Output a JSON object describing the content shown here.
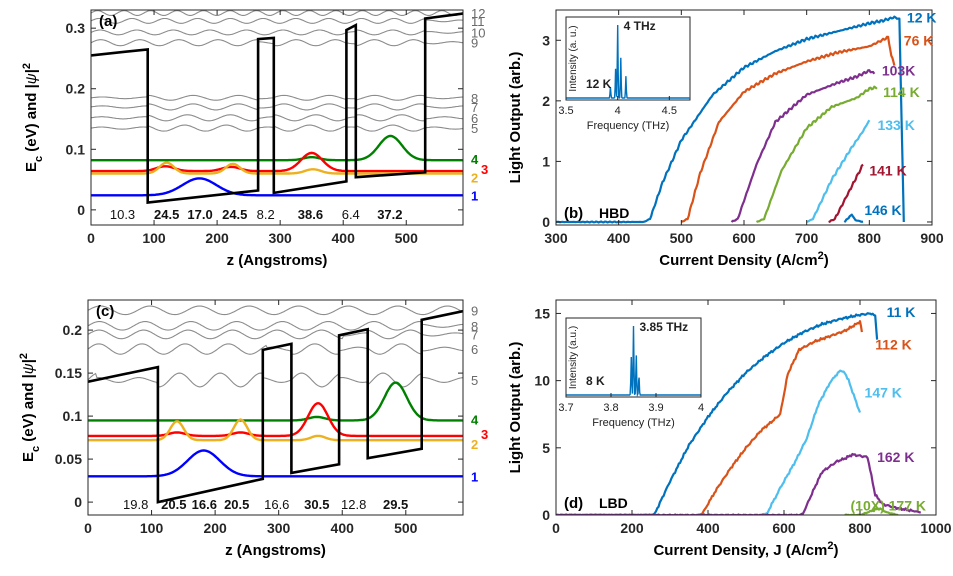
{
  "panels": [
    {
      "id": "a",
      "type": "line",
      "panel_label": "(a)",
      "xlabel": "z (Angstroms)",
      "ylabel": "E",
      "ylabel_sub": "c",
      "ylabel_rest": " (eV) and |",
      "ylabel_psi": "ψ",
      "ylabel_end": "|",
      "ylabel_sup": "2",
      "xlim": [
        0,
        590
      ],
      "ylim": [
        -0.025,
        0.33
      ],
      "xticks": [
        0,
        100,
        200,
        300,
        400,
        500
      ],
      "yticks": [
        0,
        0.1,
        0.2,
        0.3
      ],
      "ytick_labels": [
        "0",
        "0.1",
        "0.2",
        "0.3"
      ],
      "band_edge": {
        "x": [
          0,
          90,
          90,
          265,
          265,
          290,
          290,
          405,
          405,
          420,
          420,
          530,
          530,
          590
        ],
        "y": [
          0.255,
          0.265,
          0.012,
          0.032,
          0.282,
          0.284,
          0.028,
          0.047,
          0.297,
          0.305,
          0.054,
          0.062,
          0.316,
          0.324
        ]
      },
      "layer_thicknesses": [
        {
          "label": "10.3",
          "x": 50,
          "bold": false
        },
        {
          "label": "24.5",
          "x": 120,
          "bold": true
        },
        {
          "label": "17.0",
          "x": 173,
          "bold": true
        },
        {
          "label": "24.5",
          "x": 228,
          "bold": true
        },
        {
          "label": "8.2",
          "x": 277,
          "bold": false
        },
        {
          "label": "38.6",
          "x": 348,
          "bold": true
        },
        {
          "label": "6.4",
          "x": 412,
          "bold": false
        },
        {
          "label": "37.2",
          "x": 474,
          "bold": true
        }
      ],
      "grey_levels": [
        {
          "label": "12",
          "energy": 0.325,
          "amp": 0.004,
          "period": 42
        },
        {
          "label": "11",
          "energy": 0.312,
          "amp": 0.004,
          "period": 52
        },
        {
          "label": "10",
          "energy": 0.293,
          "amp": 0.004,
          "period": 58
        },
        {
          "label": "9",
          "energy": 0.276,
          "amp": 0.005,
          "period": 62
        },
        {
          "label": "8",
          "energy": 0.185,
          "amp": 0.004,
          "period": 72
        },
        {
          "label": "7",
          "energy": 0.17,
          "amp": 0.005,
          "period": 72
        },
        {
          "label": "6",
          "energy": 0.152,
          "amp": 0.005,
          "period": 68
        },
        {
          "label": "5",
          "energy": 0.135,
          "amp": 0.005,
          "period": 66
        }
      ],
      "color_levels": [
        {
          "label": "4",
          "color": "#008000",
          "energy": 0.082,
          "lobes": [
            [
              350,
              18,
              0.005
            ],
            [
              475,
              26,
              0.04
            ]
          ]
        },
        {
          "label": "3",
          "color": "#ff0000",
          "energy": 0.064,
          "lobes": [
            [
              118,
              20,
              0.008
            ],
            [
              222,
              20,
              0.007
            ],
            [
              350,
              24,
              0.03
            ]
          ]
        },
        {
          "label": "2",
          "color": "#edb120",
          "energy": 0.06,
          "lobes": [
            [
              120,
              16,
              0.018
            ],
            [
              225,
              16,
              0.016
            ],
            [
              352,
              18,
              0.007
            ]
          ]
        },
        {
          "label": "1",
          "color": "#0000ff",
          "energy": 0.024,
          "lobes": [
            [
              172,
              38,
              0.028
            ]
          ]
        }
      ]
    },
    {
      "id": "b",
      "type": "line",
      "panel_label": "(b)",
      "panel_sublabel": "HBD",
      "xlabel": "Current Density (A/cm",
      "xlabel_sup": "2",
      "xlabel_end": ")",
      "ylabel": "Light Output (arb.)",
      "xlim": [
        300,
        900
      ],
      "ylim": [
        -0.05,
        3.5
      ],
      "xticks": [
        300,
        400,
        500,
        600,
        700,
        800,
        900
      ],
      "yticks": [
        0,
        1,
        2,
        3
      ],
      "series": [
        {
          "name": "12 K",
          "color": "#0072bd",
          "x": [
            300,
            440,
            450,
            470,
            500,
            550,
            600,
            650,
            700,
            750,
            800,
            820,
            840,
            848,
            855
          ],
          "y": [
            0,
            0,
            0.05,
            0.65,
            1.35,
            2.1,
            2.55,
            2.82,
            3.02,
            3.15,
            3.28,
            3.32,
            3.38,
            3.35,
            0
          ]
        },
        {
          "name": "76 K",
          "color": "#d95319",
          "x": [
            500,
            510,
            530,
            560,
            600,
            650,
            700,
            750,
            800,
            830,
            835,
            840
          ],
          "y": [
            0,
            0.05,
            0.8,
            1.65,
            2.15,
            2.45,
            2.65,
            2.8,
            2.9,
            3.05,
            2.75,
            2.6
          ]
        },
        {
          "name": "103K",
          "color": "#7e2f8e",
          "x": [
            580,
            590,
            620,
            650,
            700,
            750,
            780,
            800,
            808
          ],
          "y": [
            0,
            0.05,
            0.95,
            1.65,
            2.1,
            2.3,
            2.4,
            2.5,
            2.45
          ]
        },
        {
          "name": "114 K",
          "color": "#77ac30",
          "x": [
            620,
            632,
            660,
            700,
            740,
            780,
            800,
            812
          ],
          "y": [
            0,
            0.05,
            0.85,
            1.55,
            1.9,
            2.05,
            2.2,
            2.22
          ]
        },
        {
          "name": "133 K",
          "color": "#4dbeee",
          "x": [
            700,
            710,
            740,
            770,
            790,
            800
          ],
          "y": [
            0,
            0.05,
            0.7,
            1.2,
            1.5,
            1.68
          ]
        },
        {
          "name": "141 K",
          "color": "#a2142f",
          "x": [
            735,
            745,
            765,
            780,
            790
          ],
          "y": [
            0,
            0.05,
            0.45,
            0.75,
            0.95
          ]
        },
        {
          "name": "146 K",
          "color": "#0072bd",
          "x": [
            760,
            765,
            772,
            778,
            790
          ],
          "y": [
            0,
            0.05,
            0.12,
            0.03,
            0
          ]
        }
      ],
      "temp_labels": [
        {
          "text": "12 K",
          "color": "#0072bd",
          "x": 860,
          "y": 3.38
        },
        {
          "text": "76 K",
          "color": "#d95319",
          "x": 855,
          "y": 3.0
        },
        {
          "text": "103K",
          "color": "#7e2f8e",
          "x": 820,
          "y": 2.5
        },
        {
          "text": "114 K",
          "color": "#77ac30",
          "x": 822,
          "y": 2.15
        },
        {
          "text": "133 K",
          "color": "#4dbeee",
          "x": 813,
          "y": 1.6
        },
        {
          "text": "141 K",
          "color": "#a2142f",
          "x": 800,
          "y": 0.85
        },
        {
          "text": "146 K",
          "color": "#0072bd",
          "x": 792,
          "y": 0.2
        }
      ],
      "inset": {
        "xlabel": "Frequency (THz)",
        "ylabel": "Intensity (a. u.)",
        "xlim": [
          3.5,
          4.7
        ],
        "xticks": [
          3.5,
          4,
          4.5
        ],
        "xtick_labels": [
          "3.5",
          "4",
          "4.5"
        ],
        "peak_label": "4 THz",
        "temp_label": "12 K",
        "color": "#0072bd",
        "peaks": [
          [
            3.93,
            0.15
          ],
          [
            3.98,
            0.4
          ],
          [
            4.0,
            1.0
          ],
          [
            4.03,
            0.55
          ],
          [
            4.08,
            0.3
          ]
        ]
      }
    },
    {
      "id": "c",
      "type": "line",
      "panel_label": "(c)",
      "xlabel": "z (Angstroms)",
      "ylabel": "E",
      "ylabel_sub": "c",
      "ylabel_rest": " (eV) and |",
      "ylabel_psi": "ψ",
      "ylabel_end": "|",
      "ylabel_sup": "2",
      "xlim": [
        0,
        590
      ],
      "ylim": [
        -0.015,
        0.235
      ],
      "xticks": [
        0,
        100,
        200,
        300,
        400,
        500
      ],
      "yticks": [
        0,
        0.05,
        0.1,
        0.15,
        0.2
      ],
      "ytick_labels": [
        "0",
        "0.05",
        "0.1",
        "0.15",
        "0.2"
      ],
      "band_edge": {
        "x": [
          0,
          110,
          110,
          275,
          275,
          320,
          320,
          395,
          395,
          440,
          440,
          525,
          525,
          590
        ],
        "y": [
          0.14,
          0.157,
          0.0,
          0.027,
          0.177,
          0.184,
          0.034,
          0.044,
          0.194,
          0.201,
          0.051,
          0.062,
          0.212,
          0.222
        ]
      },
      "layer_thicknesses": [
        {
          "label": "19.8",
          "x": 75,
          "bold": false
        },
        {
          "label": "20.5",
          "x": 135,
          "bold": true
        },
        {
          "label": "16.6",
          "x": 183,
          "bold": true
        },
        {
          "label": "20.5",
          "x": 234,
          "bold": true
        },
        {
          "label": "16.6",
          "x": 297,
          "bold": false
        },
        {
          "label": "30.5",
          "x": 360,
          "bold": true
        },
        {
          "label": "12.8",
          "x": 418,
          "bold": false
        },
        {
          "label": "29.5",
          "x": 484,
          "bold": true
        }
      ],
      "grey_levels": [
        {
          "label": "9",
          "energy": 0.223,
          "amp": 0.005,
          "period": 78
        },
        {
          "label": "8",
          "energy": 0.205,
          "amp": 0.005,
          "period": 72
        },
        {
          "label": "7",
          "energy": 0.195,
          "amp": 0.005,
          "period": 70
        },
        {
          "label": "6",
          "energy": 0.178,
          "amp": 0.006,
          "period": 68
        },
        {
          "label": "5",
          "energy": 0.142,
          "amp": 0.008,
          "period": 64
        }
      ],
      "color_levels": [
        {
          "label": "4",
          "color": "#008000",
          "energy": 0.095,
          "lobes": [
            [
              360,
              18,
              0.004
            ],
            [
              484,
              25,
              0.044
            ]
          ]
        },
        {
          "label": "3",
          "color": "#ff0000",
          "energy": 0.077,
          "lobes": [
            [
              140,
              18,
              0.004
            ],
            [
              240,
              18,
              0.004
            ],
            [
              362,
              22,
              0.038
            ]
          ]
        },
        {
          "label": "2",
          "color": "#edb120",
          "energy": 0.072,
          "lobes": [
            [
              140,
              15,
              0.022
            ],
            [
              240,
              15,
              0.024
            ],
            [
              362,
              16,
              0.005
            ]
          ]
        },
        {
          "label": "1",
          "color": "#0000ff",
          "energy": 0.03,
          "lobes": [
            [
              182,
              36,
              0.03
            ]
          ]
        }
      ]
    },
    {
      "id": "d",
      "type": "line",
      "panel_label": "(d)",
      "panel_sublabel": "LBD",
      "xlabel": "Current Density, J (A/cm",
      "xlabel_sup": "2",
      "xlabel_end": ")",
      "ylabel": "Light Output (arb.)",
      "xlim": [
        0,
        1000
      ],
      "ylim": [
        0,
        16
      ],
      "xticks": [
        0,
        200,
        400,
        600,
        800,
        1000
      ],
      "yticks": [
        0,
        5,
        10,
        15
      ],
      "series": [
        {
          "name": "11 K",
          "color": "#0072bd",
          "x": [
            0,
            250,
            260,
            300,
            350,
            400,
            450,
            500,
            550,
            600,
            650,
            700,
            750,
            800,
            830,
            840,
            845
          ],
          "y": [
            0,
            0,
            0.1,
            2.5,
            5.2,
            7.3,
            9.1,
            10.6,
            11.8,
            12.8,
            13.6,
            14.2,
            14.6,
            14.9,
            15.0,
            14.8,
            13.0
          ]
        },
        {
          "name": "112 K",
          "color": "#d95319",
          "x": [
            375,
            385,
            420,
            460,
            500,
            540,
            570,
            590,
            610,
            640,
            680,
            720,
            760,
            790,
            800,
            805
          ],
          "y": [
            0,
            0.1,
            1.8,
            3.5,
            5.0,
            6.3,
            7.0,
            7.5,
            10.5,
            12.3,
            12.9,
            13.3,
            13.7,
            14.2,
            14.4,
            13.7
          ]
        },
        {
          "name": "147 K",
          "color": "#4dbeee",
          "x": [
            540,
            555,
            590,
            630,
            660,
            690,
            720,
            745,
            760,
            770,
            780,
            790,
            800
          ],
          "y": [
            0,
            0.1,
            2.0,
            4.0,
            5.7,
            8.2,
            9.8,
            10.7,
            10.6,
            10.0,
            9.2,
            8.4,
            7.6
          ]
        },
        {
          "name": "162 K",
          "color": "#7e2f8e",
          "x": [
            0,
            640,
            650,
            680,
            700,
            720,
            740,
            760,
            780,
            800,
            820,
            840,
            860,
            900,
            960
          ],
          "y": [
            0,
            0,
            0.1,
            2.0,
            3.2,
            3.6,
            4.0,
            4.2,
            4.5,
            4.4,
            4.3,
            1.5,
            0.8,
            0.5,
            0.2
          ]
        },
        {
          "name": "177 K",
          "color": "#77ac30",
          "x": [
            760,
            800,
            830,
            850,
            870,
            900
          ],
          "y": [
            0,
            0,
            0.3,
            0.5,
            0.2,
            0
          ]
        }
      ],
      "temp_labels": [
        {
          "text": "11 K",
          "color": "#0072bd",
          "x": 870,
          "y": 15.1
        },
        {
          "text": "112 K",
          "color": "#d95319",
          "x": 840,
          "y": 12.7
        },
        {
          "text": "147 K",
          "color": "#4dbeee",
          "x": 812,
          "y": 9.1
        },
        {
          "text": "162 K",
          "color": "#7e2f8e",
          "x": 845,
          "y": 4.3
        },
        {
          "text": "(10X) 177 K",
          "color": "#77ac30",
          "x": 775,
          "y": 0.7
        }
      ],
      "inset": {
        "xlabel": "Frequency (THz)",
        "ylabel": "Intensity (a.u.)",
        "xlim": [
          3.7,
          4.0
        ],
        "xticks": [
          3.7,
          3.8,
          3.9,
          4.0
        ],
        "xtick_labels": [
          "3.7",
          "3.8",
          "3.9",
          "4"
        ],
        "peak_label": "3.85 THz",
        "temp_label": "8 K",
        "color": "#0072bd",
        "peaks": [
          [
            3.845,
            0.55
          ],
          [
            3.85,
            1.0
          ],
          [
            3.856,
            0.6
          ],
          [
            3.862,
            0.3
          ]
        ]
      }
    }
  ]
}
